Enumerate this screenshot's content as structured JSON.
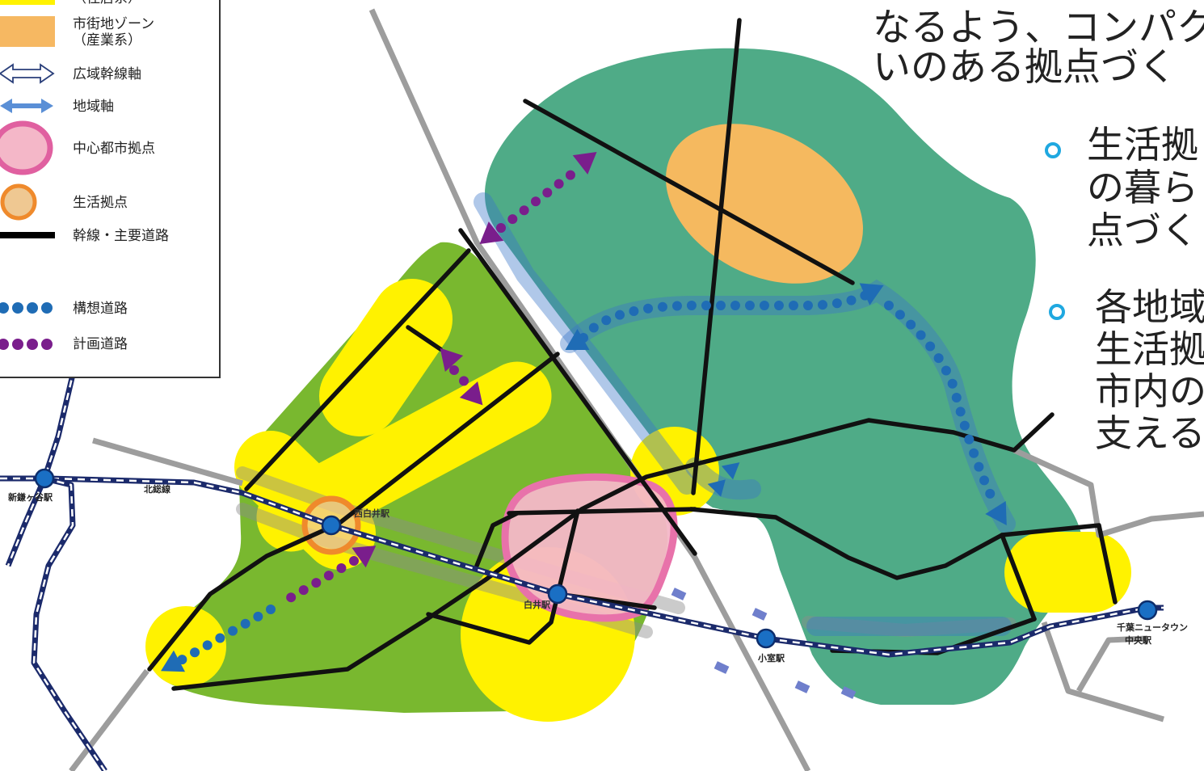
{
  "legend": {
    "residential_zone": {
      "sub": "（住居系）",
      "color": "#fff200"
    },
    "industrial_zone": {
      "label": "市街地ゾーン",
      "sub": "（産業系）",
      "color": "#f6b862"
    },
    "regional_trunk_axis": {
      "label": "広域幹線軸"
    },
    "local_axis": {
      "label": "地域軸",
      "color": "#5a8fd6"
    },
    "central_city_hub": {
      "label": "中心都市拠点",
      "color": "#f4b7c8"
    },
    "life_hub": {
      "label": "生活拠点",
      "color": "#ef8a2c"
    },
    "main_road": {
      "label": "幹線・主要道路",
      "color": "#111111"
    },
    "concept_road": {
      "label": "構想道路",
      "color": "#1f6cb5"
    },
    "planned_road": {
      "label": "計画道路",
      "color": "#7a1e8c"
    }
  },
  "map": {
    "railway_name": "北総線",
    "stations": {
      "shin_kamagaya": "新鎌ヶ谷駅",
      "nishi_shiroi": "西白井駅",
      "shiroi": "白井駅",
      "komuro": "小室駅",
      "chiba_nt_line1": "千葉ニュータウン",
      "chiba_nt_line2": "中央駅"
    },
    "colors": {
      "green_zone": "#79b82f",
      "teal_zone": "#4fab87",
      "railway": "#1b2a6b",
      "station": "#1a6fc4"
    }
  },
  "text": {
    "intro_lines": [
      "なるよう、コンパク",
      "いのある拠点づく"
    ],
    "bullets": [
      {
        "lines": [
          "生活拠",
          "の暮ら",
          "点づく"
        ]
      },
      {
        "lines": [
          "各地域",
          "生活拠",
          "市内の",
          "支える"
        ]
      }
    ],
    "bullet_color": "#1fa8e0"
  }
}
